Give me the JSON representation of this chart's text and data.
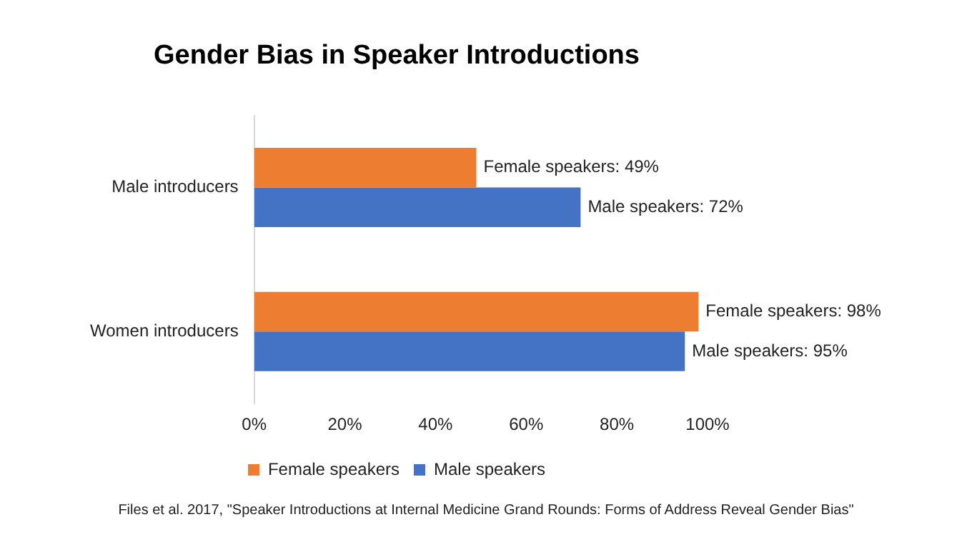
{
  "chart_data": {
    "type": "bar",
    "orientation": "horizontal",
    "title": "Gender Bias in Speaker Introductions",
    "categories": [
      "Male introducers",
      "Women introducers"
    ],
    "series": [
      {
        "name": "Female speakers",
        "color": "#ed7d31",
        "values": [
          49,
          98
        ],
        "value_labels": [
          "Female speakers: 49%",
          "Female speakers: 98%"
        ]
      },
      {
        "name": "Male speakers",
        "color": "#4472c4",
        "values": [
          72,
          95
        ],
        "value_labels": [
          "Male speakers: 72%",
          "Male speakers: 95%"
        ]
      }
    ],
    "xlim": [
      0,
      100
    ],
    "xticks": [
      {
        "value": 0,
        "label": "0%"
      },
      {
        "value": 20,
        "label": "20%"
      },
      {
        "value": 40,
        "label": "40%"
      },
      {
        "value": 60,
        "label": "60%"
      },
      {
        "value": 80,
        "label": "80%"
      },
      {
        "value": 100,
        "label": "100%"
      }
    ],
    "grid": false,
    "legend": "bottom",
    "annotations": [
      "Files et al. 2017, \"Speaker Introductions  at Internal Medicine Grand Rounds: Forms of Address Reveal Gender Bias\""
    ]
  }
}
